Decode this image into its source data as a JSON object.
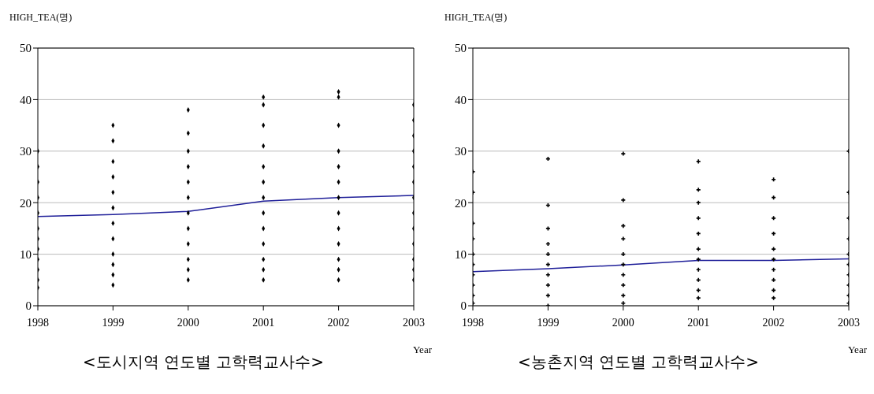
{
  "chart_data": [
    {
      "type": "scatter",
      "title": "<도시지역 연도별 고학력교사수>",
      "xlabel": "Year",
      "ylabel": "HIGH_TEA(명)",
      "xlim": [
        1998,
        2003
      ],
      "xticks": [
        1998,
        1999,
        2000,
        2001,
        2002,
        2003
      ],
      "ylim": [
        0,
        50
      ],
      "yticks": [
        0,
        10,
        20,
        30,
        40,
        50
      ],
      "grid": "y",
      "series": [
        {
          "marker": "diamond",
          "color": "#000000",
          "x": [
            1998,
            1998,
            1998,
            1998,
            1998,
            1998,
            1998,
            1998,
            1998,
            1998,
            1998,
            1998,
            1999,
            1999,
            1999,
            1999,
            1999,
            1999,
            1999,
            1999,
            1999,
            1999,
            1999,
            1999,
            2000,
            2000,
            2000,
            2000,
            2000,
            2000,
            2000,
            2000,
            2000,
            2000,
            2000,
            2000,
            2001,
            2001,
            2001,
            2001,
            2001,
            2001,
            2001,
            2001,
            2001,
            2001,
            2001,
            2001,
            2001,
            2002,
            2002,
            2002,
            2002,
            2002,
            2002,
            2002,
            2002,
            2002,
            2002,
            2002,
            2002,
            2002,
            2003,
            2003,
            2003,
            2003,
            2003,
            2003,
            2003,
            2003,
            2003,
            2003,
            2003,
            2003,
            2003
          ],
          "values": [
            3.5,
            5,
            7,
            9,
            11,
            13,
            15,
            18,
            21,
            24,
            27,
            30,
            4,
            6,
            8,
            10,
            13,
            16,
            19,
            22,
            25,
            28,
            32,
            35,
            5,
            7,
            9,
            12,
            15,
            18,
            21,
            24,
            27,
            30,
            33.5,
            38,
            5,
            7,
            9,
            12,
            15,
            18,
            21,
            24,
            27,
            31,
            35,
            39,
            40.5,
            5,
            7,
            9,
            12,
            15,
            18,
            21,
            24,
            27,
            30,
            35,
            40.5,
            41.5,
            5,
            7,
            9,
            12,
            15,
            18,
            21,
            24,
            27,
            30,
            33,
            36,
            39
          ]
        },
        {
          "type": "line",
          "marker": "none",
          "color": "#1f1f99",
          "x": [
            1998,
            1999,
            2000,
            2001,
            2002,
            2003
          ],
          "values": [
            17.3,
            17.7,
            18.3,
            20.3,
            21,
            21.4
          ]
        }
      ]
    },
    {
      "type": "scatter",
      "title": "<농촌지역 연도별 고학력교사수>",
      "xlabel": "Year",
      "ylabel": "HIGH_TEA(명)",
      "xlim": [
        1998,
        2003
      ],
      "xticks": [
        1998,
        1999,
        2000,
        2001,
        2002,
        2003
      ],
      "ylim": [
        0,
        50
      ],
      "yticks": [
        0,
        10,
        20,
        30,
        40,
        50
      ],
      "grid": "y",
      "series": [
        {
          "marker": "cross",
          "color": "#000000",
          "x": [
            1998,
            1998,
            1998,
            1998,
            1998,
            1998,
            1998,
            1998,
            1998,
            1998,
            1999,
            1999,
            1999,
            1999,
            1999,
            1999,
            1999,
            1999,
            1999,
            1999,
            2000,
            2000,
            2000,
            2000,
            2000,
            2000,
            2000,
            2000,
            2000,
            2000,
            2001,
            2001,
            2001,
            2001,
            2001,
            2001,
            2001,
            2001,
            2001,
            2001,
            2001,
            2002,
            2002,
            2002,
            2002,
            2002,
            2002,
            2002,
            2002,
            2002,
            2002,
            2003,
            2003,
            2003,
            2003,
            2003,
            2003,
            2003,
            2003,
            2003,
            2003
          ],
          "values": [
            0.5,
            2,
            4,
            6,
            8,
            10,
            13,
            16,
            22,
            26,
            0,
            2,
            4,
            6,
            8,
            10,
            12,
            15,
            19.5,
            28.5,
            0.5,
            2,
            4,
            6,
            8,
            10,
            13,
            15.5,
            20.5,
            29.5,
            1.5,
            3,
            5,
            7,
            9,
            11,
            14,
            17,
            20,
            22.5,
            28,
            1.5,
            3,
            5,
            7,
            9,
            11,
            14,
            17,
            21,
            24.5,
            0.5,
            2,
            4,
            6,
            8,
            10,
            13,
            17,
            22,
            30
          ]
        },
        {
          "type": "line",
          "marker": "none",
          "color": "#1f1f99",
          "x": [
            1998,
            1999,
            2000,
            2001,
            2002,
            2003
          ],
          "values": [
            6.6,
            7.2,
            7.9,
            8.8,
            8.8,
            9.1
          ]
        }
      ]
    }
  ]
}
